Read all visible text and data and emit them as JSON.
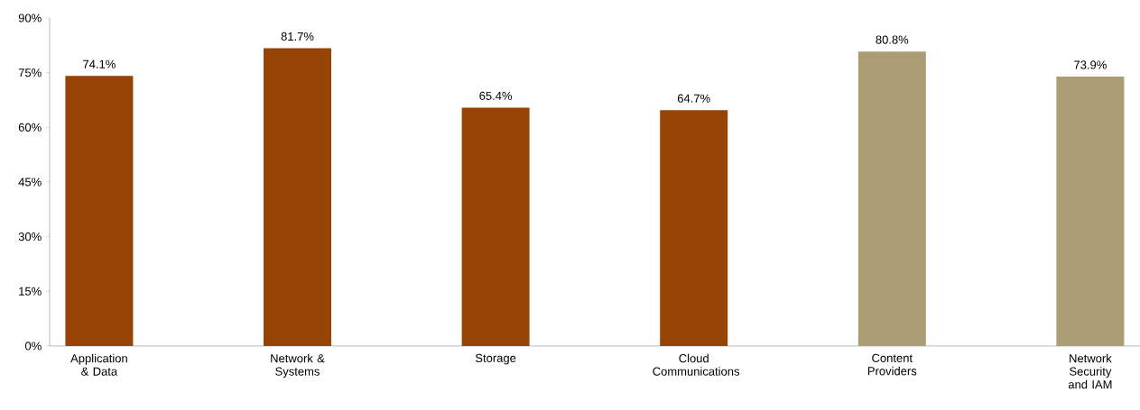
{
  "chart_data": {
    "type": "bar",
    "categories": [
      "Application & Data",
      "Network & Systems",
      "Storage",
      "Cloud Communications",
      "Content Providers",
      "Network Security and IAM"
    ],
    "values": [
      74.1,
      81.7,
      65.4,
      64.7,
      80.8,
      73.9
    ],
    "value_labels": [
      "74.1%",
      "81.7%",
      "65.4%",
      "64.7%",
      "80.8%",
      "73.9%"
    ],
    "colors": [
      "#964305",
      "#964305",
      "#964305",
      "#964305",
      "#ac9c74",
      "#ac9c74"
    ],
    "ylim": [
      0,
      90
    ],
    "yticks": [
      {
        "value": 0,
        "label": "0%"
      },
      {
        "value": 15,
        "label": "15%"
      },
      {
        "value": 30,
        "label": "30%"
      },
      {
        "value": 45,
        "label": "45%"
      },
      {
        "value": 60,
        "label": "60%"
      },
      {
        "value": 75,
        "label": "75%"
      },
      {
        "value": 90,
        "label": "90%"
      }
    ],
    "grid": false
  }
}
